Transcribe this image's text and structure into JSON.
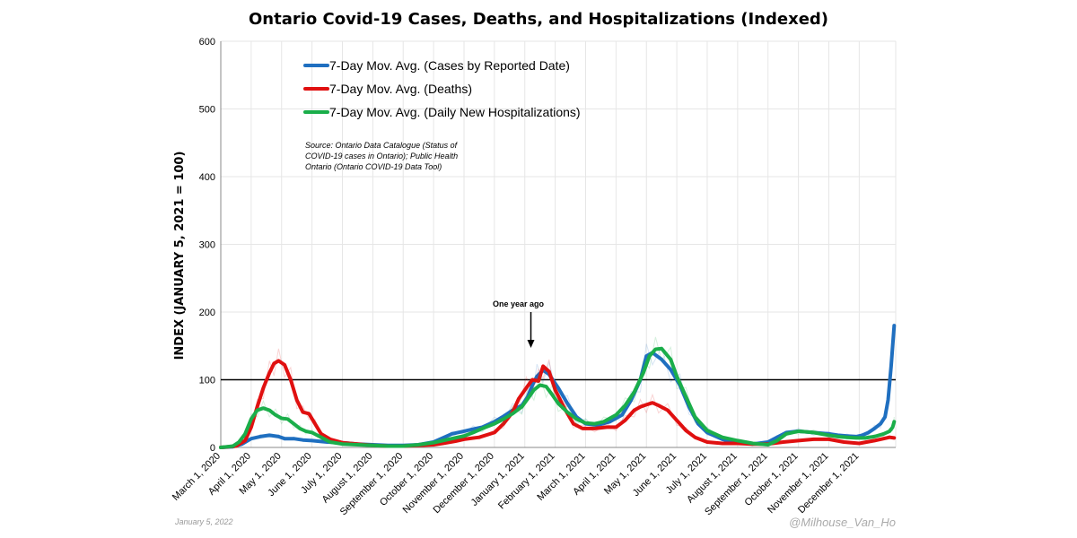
{
  "chart_data": {
    "type": "line",
    "title": "Ontario Covid-19 Cases, Deaths, and Hospitalizations (Indexed)",
    "ylabel": "INDEX (JANUARY 5, 2021 = 100)",
    "xlabel": "",
    "ylim": [
      0,
      600
    ],
    "yticks": [
      0,
      100,
      200,
      300,
      400,
      500,
      600
    ],
    "grid": true,
    "x_categories": [
      "March 1, 2020",
      "April 1, 2020",
      "May 1, 2020",
      "June 1, 2020",
      "July 1, 2020",
      "August 1, 2020",
      "September 1, 2020",
      "October 1, 2020",
      "November 1, 2020",
      "December 1, 2020",
      "January 1, 2021",
      "February 1, 2021",
      "March 1, 2021",
      "April 1, 2021",
      "May 1, 2021",
      "June 1, 2021",
      "July 1, 2021",
      "August 1, 2021",
      "September 1, 2021",
      "October 1, 2021",
      "November 1, 2021",
      "December 1, 2021"
    ],
    "x_range_months": [
      0,
      22.2
    ],
    "reference_line": 100,
    "legend": {
      "placement": "top-left",
      "entries": [
        "7-Day Mov. Avg. (Cases by Reported Date)",
        "7-Day Mov. Avg. (Deaths)",
        "7-Day Mov. Avg. (Daily New Hospitalizations)"
      ]
    },
    "source_note": [
      "Source: Ontario Data Catalogue (Status of",
      "COVID-19 cases in Ontario); Public Health",
      "Ontario (Ontario COVID-19 Data Tool)"
    ],
    "annotation": {
      "text": "One year ago",
      "x_month": 10.2,
      "y": 140
    },
    "series": [
      {
        "name": "7-Day Mov. Avg. (Cases by Reported Date)",
        "color": "#1f6fc0",
        "x": [
          0,
          0.4,
          0.7,
          1.0,
          1.3,
          1.6,
          1.9,
          2.1,
          2.4,
          2.7,
          3.0,
          3.5,
          4,
          4.5,
          5,
          5.5,
          6,
          6.5,
          7,
          7.3,
          7.6,
          8,
          8.3,
          8.6,
          9,
          9.3,
          9.6,
          9.9,
          10.1,
          10.25,
          10.4,
          10.6,
          10.8,
          11.1,
          11.4,
          11.7,
          12,
          12.4,
          12.8,
          13.2,
          13.5,
          13.8,
          14,
          14.2,
          14.5,
          14.8,
          15.1,
          15.4,
          15.7,
          16,
          16.5,
          17,
          17.5,
          18,
          18.3,
          18.6,
          19,
          19.5,
          20,
          20.3,
          20.6,
          20.9,
          21.1,
          21.3,
          21.5,
          21.7,
          21.85,
          21.95,
          22.05,
          22.15
        ],
        "values": [
          0,
          1,
          5,
          13,
          16,
          18,
          16,
          13,
          13,
          11,
          10,
          8,
          7,
          5,
          4,
          3,
          3,
          4,
          8,
          14,
          20,
          24,
          27,
          30,
          38,
          46,
          55,
          62,
          75,
          92,
          105,
          114,
          108,
          88,
          65,
          45,
          35,
          33,
          38,
          48,
          70,
          100,
          135,
          140,
          130,
          115,
          92,
          60,
          35,
          22,
          12,
          7,
          5,
          8,
          15,
          22,
          24,
          22,
          20,
          18,
          17,
          16,
          18,
          22,
          28,
          35,
          45,
          70,
          120,
          180
        ]
      },
      {
        "name": "7-Day Mov. Avg. (Deaths)",
        "color": "#e01010",
        "x": [
          0,
          0.5,
          0.8,
          1.0,
          1.2,
          1.4,
          1.6,
          1.75,
          1.9,
          2.1,
          2.3,
          2.5,
          2.7,
          2.9,
          3.1,
          3.3,
          3.6,
          4,
          4.5,
          5,
          5.5,
          6,
          6.5,
          7,
          7.3,
          7.7,
          8,
          8.5,
          9,
          9.3,
          9.6,
          9.8,
          10.05,
          10.25,
          10.45,
          10.6,
          10.8,
          11,
          11.3,
          11.6,
          11.9,
          12.3,
          12.7,
          13,
          13.3,
          13.6,
          13.8,
          14.0,
          14.2,
          14.4,
          14.7,
          15,
          15.3,
          15.6,
          16,
          16.5,
          17,
          17.5,
          18,
          18.5,
          19,
          19.5,
          20,
          20.5,
          21,
          21.5,
          22,
          22.15
        ],
        "values": [
          0,
          2,
          10,
          30,
          60,
          88,
          110,
          124,
          128,
          122,
          100,
          70,
          52,
          50,
          35,
          20,
          12,
          7,
          5,
          3,
          2,
          2,
          3,
          4,
          6,
          9,
          12,
          15,
          22,
          35,
          52,
          72,
          88,
          100,
          98,
          120,
          112,
          85,
          58,
          35,
          28,
          28,
          30,
          30,
          40,
          55,
          60,
          63,
          66,
          62,
          55,
          40,
          25,
          15,
          8,
          6,
          6,
          5,
          5,
          8,
          10,
          12,
          12,
          8,
          6,
          10,
          15,
          14
        ]
      },
      {
        "name": "7-Day Mov. Avg. (Daily New Hospitalizations)",
        "color": "#1aae4a",
        "x": [
          0,
          0.4,
          0.6,
          0.8,
          1.0,
          1.2,
          1.4,
          1.6,
          1.8,
          2.0,
          2.2,
          2.4,
          2.6,
          2.8,
          3.0,
          3.3,
          3.6,
          4,
          4.5,
          5,
          5.5,
          6,
          6.5,
          7,
          7.5,
          8,
          8.3,
          8.6,
          9,
          9.3,
          9.6,
          9.9,
          10.1,
          10.3,
          10.5,
          10.7,
          10.9,
          11.1,
          11.4,
          11.7,
          12,
          12.3,
          12.6,
          13,
          13.3,
          13.6,
          13.9,
          14.1,
          14.3,
          14.5,
          14.8,
          15,
          15.3,
          15.6,
          16,
          16.5,
          17,
          17.5,
          18,
          18.3,
          18.6,
          19,
          19.5,
          20,
          20.3,
          20.6,
          20.9,
          21.2,
          21.5,
          21.8,
          22.0,
          22.1,
          22.15
        ],
        "values": [
          0,
          2,
          8,
          20,
          42,
          55,
          58,
          55,
          48,
          43,
          42,
          35,
          28,
          24,
          22,
          15,
          8,
          5,
          4,
          3,
          2,
          2,
          4,
          7,
          12,
          17,
          22,
          28,
          35,
          42,
          50,
          60,
          72,
          85,
          92,
          90,
          78,
          65,
          52,
          42,
          36,
          35,
          38,
          48,
          62,
          82,
          110,
          135,
          145,
          146,
          130,
          105,
          75,
          45,
          25,
          15,
          10,
          6,
          4,
          10,
          20,
          24,
          22,
          18,
          16,
          15,
          14,
          14,
          16,
          20,
          24,
          30,
          38
        ]
      }
    ]
  },
  "footer": {
    "date": "January 5, 2022",
    "handle": "@Milhouse_Van_Ho"
  }
}
